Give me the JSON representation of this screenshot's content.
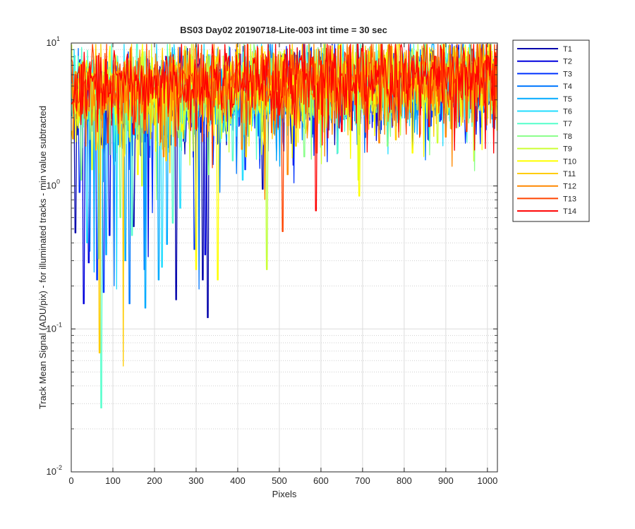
{
  "chart_data": {
    "type": "line",
    "title": "BS03 Day02 20190718-Lite-003 int time = 30 sec",
    "xlabel": "Pixels",
    "ylabel": "Track Mean Signal (ADU/pix) - for illuminated tracks - min value subtracted",
    "xlim": [
      0,
      1024
    ],
    "ylim": [
      0.01,
      10
    ],
    "yscale": "log",
    "grid": true,
    "minor_grid": true,
    "x_ticks": [
      "0",
      "100",
      "200",
      "300",
      "400",
      "500",
      "600",
      "700",
      "800",
      "900",
      "1000"
    ],
    "y_ticks": [
      {
        "base": "10",
        "exp": "-2"
      },
      {
        "base": "10",
        "exp": "-1"
      },
      {
        "base": "10",
        "exp": "0"
      },
      {
        "base": "10",
        "exp": "1"
      }
    ],
    "legend_position": "outside-right",
    "series": [
      {
        "name": "T1",
        "color": "#0000AA",
        "trend_start": 3.9,
        "trend_end": 5.2,
        "dips": [
          [
            10,
            0.47
          ],
          [
            150,
            0.52
          ],
          [
            252,
            0.16
          ],
          [
            316,
            0.22
          ],
          [
            328,
            0.12
          ],
          [
            460,
            0.95
          ]
        ]
      },
      {
        "name": "T2",
        "color": "#0000DD",
        "trend_start": 4.0,
        "trend_end": 5.3,
        "dips": [
          [
            30,
            0.15
          ],
          [
            42,
            0.29
          ],
          [
            92,
            0.45
          ],
          [
            185,
            0.32
          ],
          [
            322,
            0.33
          ],
          [
            533,
            1.4
          ]
        ]
      },
      {
        "name": "T3",
        "color": "#0033FF",
        "trend_start": 4.0,
        "trend_end": 5.4,
        "dips": [
          [
            20,
            0.9
          ],
          [
            62,
            0.22
          ],
          [
            78,
            0.18
          ],
          [
            195,
            0.65
          ],
          [
            296,
            0.36
          ],
          [
            418,
            1.3
          ]
        ]
      },
      {
        "name": "T4",
        "color": "#0077FF",
        "trend_start": 4.1,
        "trend_end": 5.4,
        "dips": [
          [
            45,
            0.35
          ],
          [
            103,
            0.2
          ],
          [
            140,
            0.15
          ],
          [
            176,
            0.26
          ],
          [
            307,
            0.19
          ],
          [
            357,
            0.9
          ]
        ]
      },
      {
        "name": "T5",
        "color": "#00AAFF",
        "trend_start": 4.2,
        "trend_end": 5.5,
        "dips": [
          [
            55,
            0.25
          ],
          [
            84,
            0.33
          ],
          [
            130,
            0.3
          ],
          [
            178,
            0.14
          ],
          [
            210,
            0.22
          ],
          [
            230,
            0.39
          ]
        ]
      },
      {
        "name": "T6",
        "color": "#22DDFF",
        "trend_start": 4.2,
        "trend_end": 5.6,
        "dips": [
          [
            38,
            0.4
          ],
          [
            66,
            0.31
          ],
          [
            109,
            0.19
          ],
          [
            218,
            0.27
          ],
          [
            262,
            0.7
          ],
          [
            412,
            1.1
          ]
        ]
      },
      {
        "name": "T7",
        "color": "#55FFCC",
        "trend_start": 4.3,
        "trend_end": 5.7,
        "dips": [
          [
            72,
            0.028
          ],
          [
            146,
            0.45
          ],
          [
            244,
            0.55
          ],
          [
            388,
            1.5
          ],
          [
            470,
            0.27
          ],
          [
            640,
            1.7
          ]
        ]
      },
      {
        "name": "T8",
        "color": "#88FF88",
        "trend_start": 4.4,
        "trend_end": 5.8,
        "dips": [
          [
            24,
            1.1
          ],
          [
            118,
            0.6
          ],
          [
            205,
            0.8
          ],
          [
            330,
            1.2
          ],
          [
            560,
            1.6
          ],
          [
            760,
            1.9
          ]
        ]
      },
      {
        "name": "T9",
        "color": "#CCFF33",
        "trend_start": 4.4,
        "trend_end": 5.8,
        "dips": [
          [
            50,
            1.3
          ],
          [
            170,
            1.0
          ],
          [
            285,
            1.4
          ],
          [
            470,
            0.26
          ],
          [
            690,
            1.1
          ],
          [
            880,
            2.0
          ]
        ]
      },
      {
        "name": "T10",
        "color": "#FFFF00",
        "trend_start": 4.5,
        "trend_end": 5.9,
        "dips": [
          [
            60,
            1.8
          ],
          [
            160,
            1.2
          ],
          [
            300,
            0.26
          ],
          [
            352,
            0.22
          ],
          [
            692,
            0.85
          ],
          [
            820,
            1.7
          ]
        ]
      },
      {
        "name": "T11",
        "color": "#FFCC00",
        "trend_start": 4.6,
        "trend_end": 6.0,
        "dips": [
          [
            68,
            0.068
          ],
          [
            125,
            0.055
          ],
          [
            228,
            1.5
          ],
          [
            420,
            1.6
          ],
          [
            540,
            1.9
          ],
          [
            780,
            2.1
          ]
        ]
      },
      {
        "name": "T12",
        "color": "#FF8800",
        "trend_start": 4.7,
        "trend_end": 6.1,
        "dips": [
          [
            35,
            1.9
          ],
          [
            222,
            1.6
          ],
          [
            410,
            1.8
          ],
          [
            520,
            1.2
          ],
          [
            740,
            2.0
          ],
          [
            900,
            2.2
          ]
        ]
      },
      {
        "name": "T13",
        "color": "#FF4400",
        "trend_start": 4.8,
        "trend_end": 6.2,
        "dips": [
          [
            88,
            2.0
          ],
          [
            250,
            1.9
          ],
          [
            508,
            0.48
          ],
          [
            590,
            1.7
          ],
          [
            805,
            2.3
          ],
          [
            950,
            2.4
          ]
        ]
      },
      {
        "name": "T14",
        "color": "#FF0000",
        "trend_start": 4.9,
        "trend_end": 6.3,
        "dips": [
          [
            150,
            2.3
          ],
          [
            300,
            2.5
          ],
          [
            588,
            0.67
          ],
          [
            650,
            2.4
          ],
          [
            860,
            2.6
          ],
          [
            1015,
            1.7
          ]
        ]
      }
    ]
  }
}
